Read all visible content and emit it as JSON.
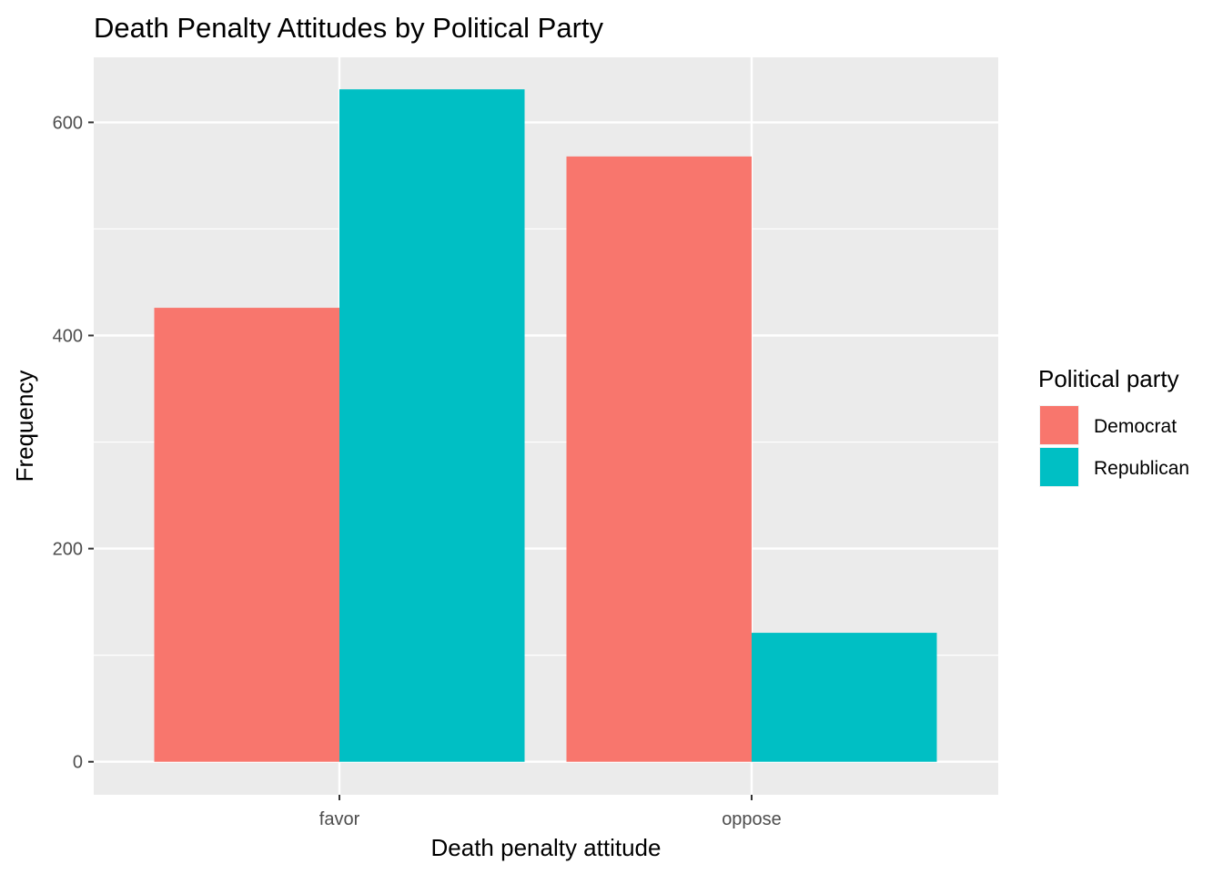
{
  "chart_data": {
    "type": "bar",
    "title": "Death Penalty Attitudes by Political Party",
    "xlabel": "Death penalty attitude",
    "ylabel": "Frequency",
    "categories": [
      "favor",
      "oppose"
    ],
    "series": [
      {
        "name": "Democrat",
        "values": [
          426,
          568
        ],
        "color": "#F8766D"
      },
      {
        "name": "Republican",
        "values": [
          631,
          121
        ],
        "color": "#00BFC4"
      }
    ],
    "yticks": [
      0,
      200,
      400,
      600
    ],
    "ytick_labels": [
      "0",
      "200",
      "400",
      "600"
    ],
    "ylim": [
      -31,
      661
    ],
    "grid": true,
    "panel_background": "#EBEBEB",
    "legend": {
      "title": "Political party",
      "position": "right"
    }
  }
}
